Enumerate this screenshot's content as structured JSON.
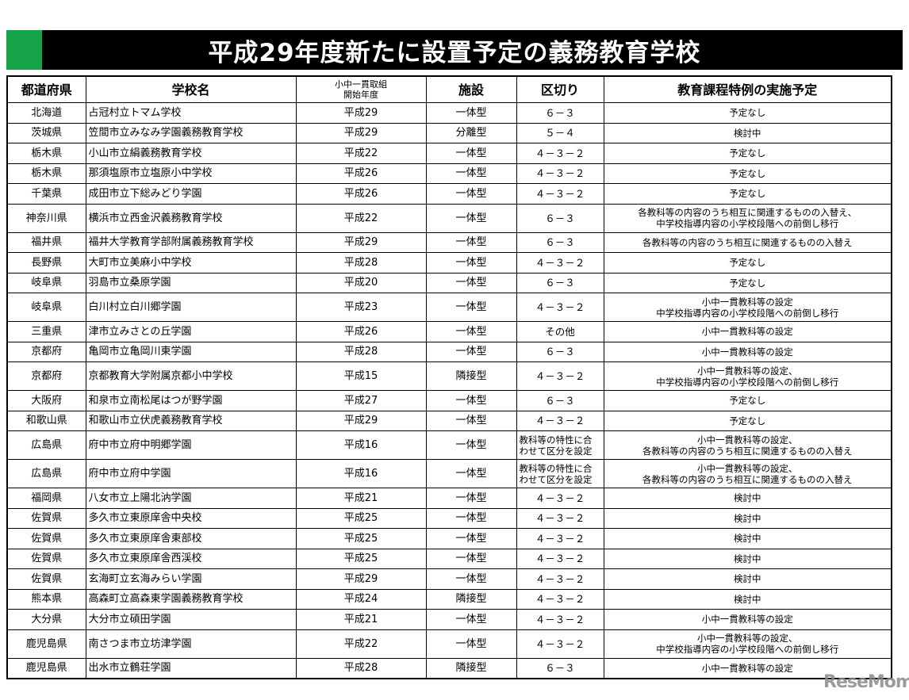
{
  "title": "平成29年度新たに設置予定の義務教育学校",
  "colors": {
    "title_bg": "#000000",
    "accent": "#15a447",
    "watermark": "#8a8a8a"
  },
  "watermark": "ReseMom",
  "headers": [
    "都道府県",
    "学校名",
    "小中一貫取組\n開始年度",
    "施設",
    "区切り",
    "教育課程特例の実施予定"
  ],
  "rows": [
    [
      "北海道",
      "占冠村立トマム学校",
      "平成29",
      "一体型",
      "６－３",
      "予定なし"
    ],
    [
      "茨城県",
      "笠間市立みなみ学園義務教育学校",
      "平成29",
      "分離型",
      "５－４",
      "検討中"
    ],
    [
      "栃木県",
      "小山市立絹義務教育学校",
      "平成22",
      "一体型",
      "４－３－２",
      "予定なし"
    ],
    [
      "栃木県",
      "那須塩原市立塩原小中学校",
      "平成26",
      "一体型",
      "４－３－２",
      "予定なし"
    ],
    [
      "千葉県",
      "成田市立下総みどり学園",
      "平成26",
      "一体型",
      "４－３－２",
      "予定なし"
    ],
    [
      "神奈川県",
      "横浜市立西金沢義務教育学校",
      "平成22",
      "一体型",
      "６－３",
      "各教科等の内容のうち相互に関連するものの入替え、\n中学校指導内容の小学校段階への前倒し移行"
    ],
    [
      "福井県",
      "福井大学教育学部附属義務教育学校",
      "平成29",
      "一体型",
      "６－３",
      "各教科等の内容のうち相互に関連するものの入替え"
    ],
    [
      "長野県",
      "大町市立美麻小中学校",
      "平成28",
      "一体型",
      "４－３－２",
      "予定なし"
    ],
    [
      "岐阜県",
      "羽島市立桑原学園",
      "平成20",
      "一体型",
      "６－３",
      "予定なし"
    ],
    [
      "岐阜県",
      "白川村立白川郷学園",
      "平成23",
      "一体型",
      "４－３－２",
      "小中一貫教科等の設定\n中学校指導内容の小学校段階への前倒し移行"
    ],
    [
      "三重県",
      "津市立みさとの丘学園",
      "平成26",
      "一体型",
      "その他",
      "小中一貫教科等の設定"
    ],
    [
      "京都府",
      "亀岡市立亀岡川東学園",
      "平成28",
      "一体型",
      "６－３",
      "小中一貫教科等の設定"
    ],
    [
      "京都府",
      "京都教育大学附属京都小中学校",
      "平成15",
      "隣接型",
      "４－３－２",
      "小中一貫教科等の設定、\n中学校指導内容の小学校段階への前倒し移行"
    ],
    [
      "大阪府",
      "和泉市立南松尾はつが野学園",
      "平成27",
      "一体型",
      "６－３",
      "予定なし"
    ],
    [
      "和歌山県",
      "和歌山市立伏虎義務教育学校",
      "平成29",
      "一体型",
      "４－３－２",
      "予定なし"
    ],
    [
      "広島県",
      "府中市立府中明郷学園",
      "平成16",
      "一体型",
      "教科等の特性に合\nわせて区分を設定",
      "小中一貫教科等の設定、\n各教科等の内容のうち相互に関連するものの入替え"
    ],
    [
      "広島県",
      "府中市立府中学園",
      "平成16",
      "一体型",
      "教科等の特性に合\nわせて区分を設定",
      "小中一貫教科等の設定、\n各教科等の内容のうち相互に関連するものの入替え"
    ],
    [
      "福岡県",
      "八女市立上陽北汭学園",
      "平成21",
      "一体型",
      "４－３－２",
      "検討中"
    ],
    [
      "佐賀県",
      "多久市立東原庠舎中央校",
      "平成25",
      "一体型",
      "４－３－２",
      "検討中"
    ],
    [
      "佐賀県",
      "多久市立東原庠舎東部校",
      "平成25",
      "一体型",
      "４－３－２",
      "検討中"
    ],
    [
      "佐賀県",
      "多久市立東原庠舎西渓校",
      "平成25",
      "一体型",
      "４－３－２",
      "検討中"
    ],
    [
      "佐賀県",
      "玄海町立玄海みらい学園",
      "平成29",
      "一体型",
      "４－３－２",
      "検討中"
    ],
    [
      "熊本県",
      "高森町立高森東学園義務教育学校",
      "平成24",
      "隣接型",
      "４－３－２",
      "検討中"
    ],
    [
      "大分県",
      "大分市立碩田学園",
      "平成21",
      "一体型",
      "４－３－２",
      "小中一貫教科等の設定"
    ],
    [
      "鹿児島県",
      "南さつま市立坊津学園",
      "平成22",
      "一体型",
      "４－３－２",
      "小中一貫教科等の設定、\n中学校指導内容の小学校段階への前倒し移行"
    ],
    [
      "鹿児島県",
      "出水市立鶴荘学園",
      "平成28",
      "隣接型",
      "６－３",
      "小中一貫教科等の設定"
    ]
  ]
}
